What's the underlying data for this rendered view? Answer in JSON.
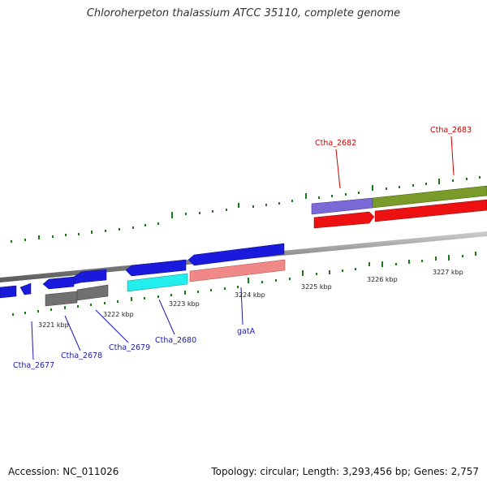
{
  "title": "Chloroherpeton thalassium ATCC 35110, complete genome",
  "accession_label": "Accession: NC_011026",
  "summary_label": "Topology: circular; Length: 3,293,456 bp; Genes: 2,757",
  "colors": {
    "tick": "#1a7a1a",
    "backbone": "#8a8a8a",
    "label_forward": "#cc0000",
    "label_reverse": "#1a1aaa"
  },
  "scale_labels": [
    "3221 kbp",
    "3222 kbp",
    "3223 kbp",
    "3224 kbp",
    "3225 kbp",
    "3226 kbp",
    "3227 kbp"
  ],
  "gene_labels": [
    {
      "text": "Ctha_2677",
      "strand": "reverse"
    },
    {
      "text": "Ctha_2678",
      "strand": "reverse"
    },
    {
      "text": "Ctha_2679",
      "strand": "reverse"
    },
    {
      "text": "Ctha_2680",
      "strand": "reverse"
    },
    {
      "text": "gatA",
      "strand": "reverse"
    },
    {
      "text": "Ctha_2682",
      "strand": "forward"
    },
    {
      "text": "Ctha_2683",
      "strand": "forward"
    }
  ]
}
